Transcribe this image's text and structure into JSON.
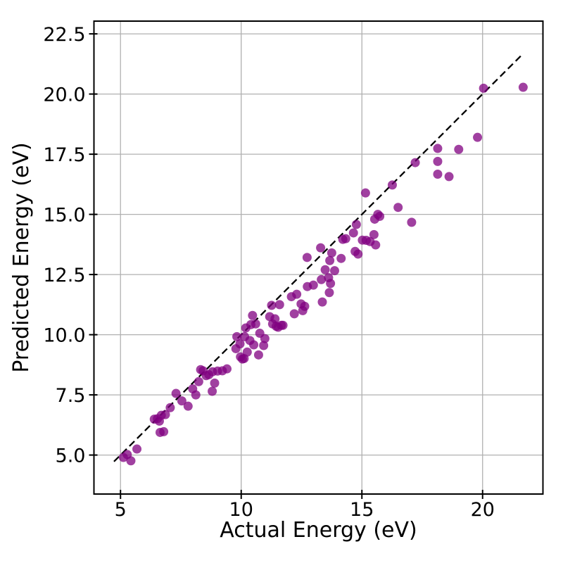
{
  "figure": {
    "background": "#ffffff"
  },
  "chart_data": {
    "type": "scatter",
    "title": "",
    "xlabel": "Actual Energy (eV)",
    "ylabel": "Predicted Energy (eV)",
    "xlim": [
      3.9,
      22.5
    ],
    "ylim": [
      3.38,
      23.03
    ],
    "xticks": [
      5,
      10,
      15,
      20
    ],
    "yticks": [
      5.0,
      7.5,
      10.0,
      12.5,
      15.0,
      17.5,
      20.0,
      22.5
    ],
    "xtick_labels": [
      "5",
      "10",
      "15",
      "20"
    ],
    "ytick_labels": [
      "5.0",
      "7.5",
      "10.0",
      "12.5",
      "15.0",
      "17.5",
      "20.0",
      "22.5"
    ],
    "grid": true,
    "grid_color": "#b0b0b0",
    "spine_color": "#000000",
    "marker_color": "#800080",
    "marker_alpha": 0.75,
    "marker_radius": 6.5,
    "identity_line": {
      "style": "dashed",
      "color": "#000000",
      "x_start": 4.73,
      "y_start": 4.73,
      "x_end": 21.62,
      "y_end": 21.62
    },
    "legend": null,
    "points": [
      [
        5.12,
        4.9
      ],
      [
        5.28,
        5.02
      ],
      [
        5.43,
        4.76
      ],
      [
        5.68,
        5.25
      ],
      [
        6.4,
        6.49
      ],
      [
        6.53,
        6.51
      ],
      [
        6.61,
        6.41
      ],
      [
        6.64,
        5.94
      ],
      [
        6.79,
        5.97
      ],
      [
        6.69,
        6.65
      ],
      [
        6.86,
        6.68
      ],
      [
        7.06,
        6.97
      ],
      [
        7.3,
        7.56
      ],
      [
        7.54,
        7.25
      ],
      [
        7.8,
        7.03
      ],
      [
        7.99,
        7.75
      ],
      [
        8.12,
        7.5
      ],
      [
        8.24,
        8.05
      ],
      [
        8.8,
        7.65
      ],
      [
        8.9,
        7.99
      ],
      [
        8.32,
        8.55
      ],
      [
        8.42,
        8.5
      ],
      [
        8.55,
        8.3
      ],
      [
        8.66,
        8.34
      ],
      [
        8.81,
        8.46
      ],
      [
        9.02,
        8.49
      ],
      [
        9.22,
        8.5
      ],
      [
        9.41,
        8.58
      ],
      [
        9.78,
        9.42
      ],
      [
        9.82,
        9.92
      ],
      [
        9.95,
        9.62
      ],
      [
        9.97,
        9.08
      ],
      [
        10.05,
        8.99
      ],
      [
        10.12,
        9.01
      ],
      [
        10.14,
        9.92
      ],
      [
        10.19,
        10.28
      ],
      [
        10.25,
        9.28
      ],
      [
        10.36,
        9.76
      ],
      [
        10.4,
        10.42
      ],
      [
        10.47,
        10.8
      ],
      [
        10.52,
        9.58
      ],
      [
        10.6,
        10.45
      ],
      [
        10.72,
        9.16
      ],
      [
        10.77,
        10.06
      ],
      [
        10.93,
        9.55
      ],
      [
        10.98,
        9.84
      ],
      [
        11.18,
        10.75
      ],
      [
        11.26,
        11.22
      ],
      [
        11.3,
        10.45
      ],
      [
        11.4,
        10.66
      ],
      [
        11.45,
        10.35
      ],
      [
        11.53,
        10.31
      ],
      [
        11.59,
        11.25
      ],
      [
        11.66,
        10.39
      ],
      [
        11.73,
        10.39
      ],
      [
        12.08,
        11.58
      ],
      [
        12.2,
        10.87
      ],
      [
        12.3,
        11.68
      ],
      [
        12.48,
        11.28
      ],
      [
        12.55,
        11.0
      ],
      [
        12.63,
        11.18
      ],
      [
        12.74,
        12.0
      ],
      [
        12.99,
        12.06
      ],
      [
        12.73,
        13.21
      ],
      [
        13.29,
        13.61
      ],
      [
        13.32,
        12.29
      ],
      [
        13.48,
        12.7
      ],
      [
        13.62,
        12.37
      ],
      [
        13.7,
        12.13
      ],
      [
        13.87,
        12.66
      ],
      [
        13.36,
        11.36
      ],
      [
        13.65,
        11.75
      ],
      [
        13.67,
        13.08
      ],
      [
        13.75,
        13.4
      ],
      [
        14.14,
        13.17
      ],
      [
        14.21,
        13.96
      ],
      [
        14.33,
        13.99
      ],
      [
        14.65,
        14.23
      ],
      [
        14.72,
        13.46
      ],
      [
        14.84,
        13.35
      ],
      [
        14.77,
        14.58
      ],
      [
        15.02,
        13.93
      ],
      [
        15.18,
        13.92
      ],
      [
        15.34,
        13.87
      ],
      [
        15.5,
        14.16
      ],
      [
        15.57,
        13.73
      ],
      [
        15.15,
        15.89
      ],
      [
        15.53,
        14.8
      ],
      [
        15.66,
        15.0
      ],
      [
        15.74,
        14.92
      ],
      [
        16.26,
        16.22
      ],
      [
        16.5,
        15.29
      ],
      [
        17.06,
        14.67
      ],
      [
        17.21,
        17.15
      ],
      [
        18.14,
        17.74
      ],
      [
        18.14,
        17.2
      ],
      [
        18.14,
        16.67
      ],
      [
        18.61,
        16.57
      ],
      [
        19.01,
        17.7
      ],
      [
        19.79,
        18.2
      ],
      [
        20.04,
        20.24
      ],
      [
        21.68,
        20.28
      ]
    ]
  }
}
